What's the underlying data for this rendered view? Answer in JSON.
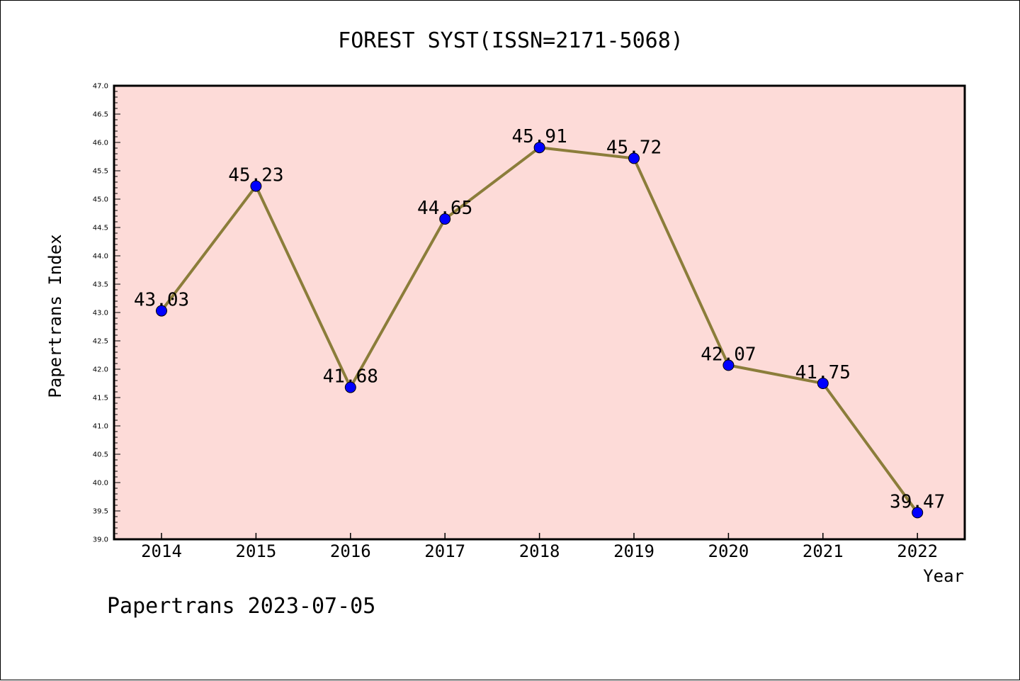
{
  "chart_data": {
    "type": "line",
    "title": "FOREST SYST(ISSN=2171-5068)",
    "xlabel": "Year",
    "ylabel": "Papertrans Index",
    "footer": "Papertrans 2023-07-05",
    "x": [
      "2014",
      "2015",
      "2016",
      "2017",
      "2018",
      "2019",
      "2020",
      "2021",
      "2022"
    ],
    "series": [
      {
        "values": [
          43.03,
          45.23,
          41.68,
          44.65,
          45.91,
          45.72,
          42.07,
          41.75,
          39.47
        ],
        "labels": [
          "43.03",
          "45.23",
          "41.68",
          "44.65",
          "45.91",
          "45.72",
          "42.07",
          "41.75",
          "39.47"
        ],
        "line_color": "#8b7d3a",
        "marker_color": "#0000ff"
      }
    ],
    "ylim": [
      39.0,
      47.0
    ],
    "y_major_step": 0.5,
    "y_tick_labels": [
      "39.0",
      "39.5",
      "40.0",
      "40.5",
      "41.0",
      "41.5",
      "42.0",
      "42.5",
      "43.0",
      "43.5",
      "44.0",
      "44.5",
      "45.0",
      "45.5",
      "46.0",
      "46.5",
      "47.0"
    ],
    "plot_background": "#fddbd8",
    "grid": false,
    "legend": "none"
  }
}
